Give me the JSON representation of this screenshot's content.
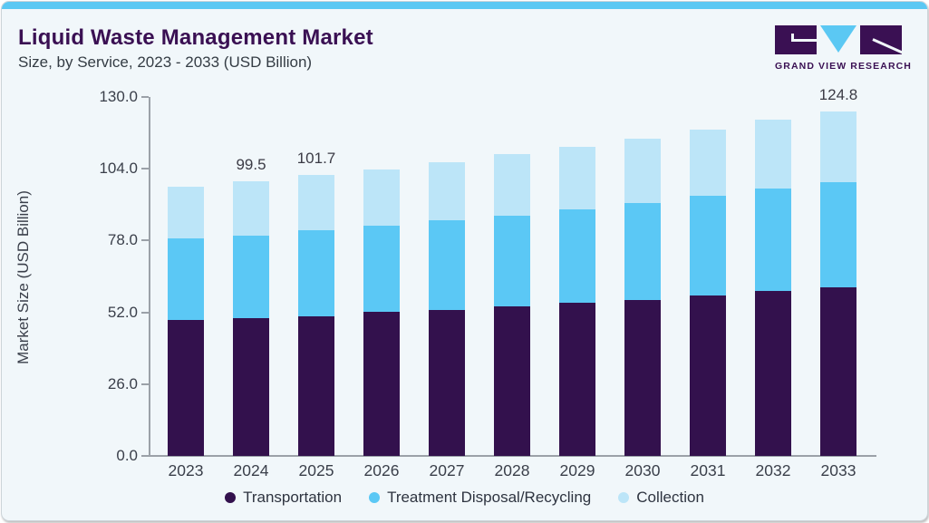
{
  "header": {
    "title": "Liquid Waste Management Market",
    "subtitle": "Size, by Service, 2023 - 2033 (USD Billion)",
    "logo_text": "GRAND VIEW RESEARCH"
  },
  "colors": {
    "accent_bar": "#5bc8f3",
    "title_purple": "#3a1053",
    "axis_gray": "#9ba1a8"
  },
  "chart_data": {
    "type": "bar",
    "stacked": true,
    "title": "Liquid Waste Management Market Size, by Service, 2023 - 2033 (USD Billion)",
    "ylabel": "Market Size (USD Billion)",
    "xlabel": "",
    "ylim": [
      0,
      130
    ],
    "grid": false,
    "legend_position": "bottom",
    "yticks": [
      0,
      26,
      52,
      78,
      104,
      130
    ],
    "ytick_labels": [
      "0.0",
      "26.0",
      "52.0",
      "78.0",
      "104.0",
      "130.0"
    ],
    "categories": [
      "2023",
      "2024",
      "2025",
      "2026",
      "2027",
      "2028",
      "2029",
      "2030",
      "2031",
      "2032",
      "2033"
    ],
    "series": [
      {
        "name": "Transportation",
        "color": "#33114d",
        "values": [
          49.1,
          49.8,
          50.7,
          52.1,
          52.9,
          54.1,
          55.6,
          56.6,
          58.2,
          59.7,
          61.2
        ]
      },
      {
        "name": "Treatment Disposal/Recycling",
        "color": "#5bc8f5",
        "values": [
          29.6,
          30.1,
          30.9,
          31.4,
          32.4,
          33.0,
          33.8,
          35.1,
          36.0,
          37.0,
          37.8
        ]
      },
      {
        "name": "Collection",
        "color": "#bce5f8",
        "values": [
          18.7,
          19.6,
          20.1,
          20.3,
          21.1,
          22.1,
          22.6,
          23.3,
          24.1,
          25.0,
          25.8
        ]
      }
    ],
    "totals": [
      97.4,
      99.5,
      101.7,
      103.8,
      106.4,
      109.2,
      112.0,
      115.0,
      118.3,
      121.7,
      124.8
    ],
    "total_labels": [
      "",
      "99.5",
      "101.7",
      "",
      "",
      "",
      "",
      "",
      "",
      "",
      "124.8"
    ]
  }
}
